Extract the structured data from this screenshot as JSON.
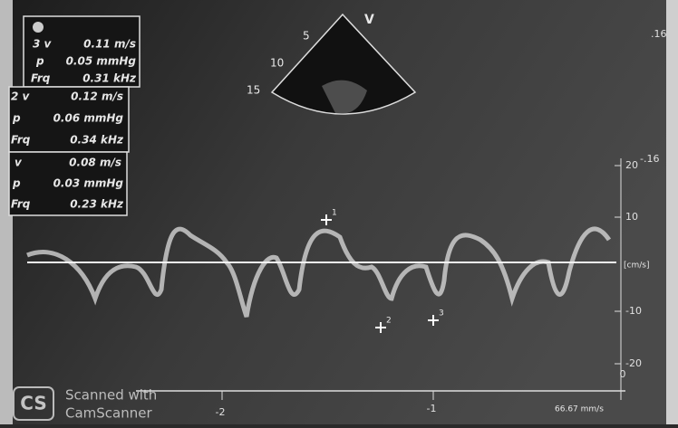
{
  "measurements": [
    {
      "v_label": "3 v",
      "v": "0.11 m/s",
      "p_label": "p",
      "p": "0.05 mmHg",
      "frq_label": "Frq",
      "frq": "0.31 kHz"
    },
    {
      "v_label": "2 v",
      "v": "0.12 m/s",
      "p_label": "p",
      "p": "0.06 mmHg",
      "frq_label": "Frq",
      "frq": "0.34 kHz"
    },
    {
      "v_label": "v",
      "v": "0.08 m/s",
      "p_label": "p",
      "p": "0.03 mmHg",
      "frq_label": "Frq",
      "frq": "0.23 kHz"
    }
  ],
  "sector": {
    "mode": "V",
    "depths": [
      "5",
      "10",
      "15"
    ]
  },
  "velocity_axis": {
    "labels": [
      "20",
      "10",
      "-10",
      "-20"
    ],
    "unit": "[cm/s]",
    "scale": [
      ".16",
      "-.16"
    ]
  },
  "markers": [
    "1",
    "2",
    "3"
  ],
  "time_axis": {
    "labels": [
      "-2",
      "-1",
      "0"
    ],
    "sweep": "66.67 mm/s"
  },
  "watermark": {
    "logo": "CS",
    "line1": "Scanned with",
    "line2": "CamScanner"
  }
}
